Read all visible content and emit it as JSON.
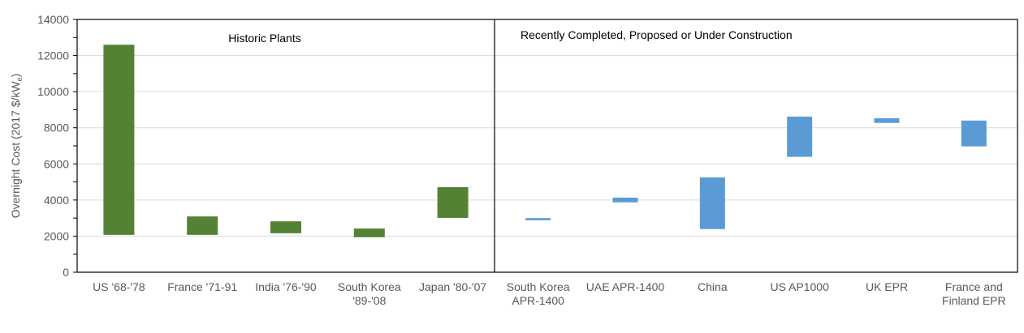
{
  "chart_data": {
    "type": "bar",
    "subtype": "floating-range",
    "ylabel": "Overnight Cost (2017 $/kWe)",
    "ylabel_main": "Overnight Cost (2017 $/kW",
    "ylabel_sub": "e",
    "ylabel_end": ")",
    "ylim": [
      0,
      14000
    ],
    "yticks": [
      0,
      2000,
      4000,
      6000,
      8000,
      10000,
      12000,
      14000
    ],
    "grid": true,
    "panels": [
      {
        "title": "Historic Plants",
        "color": "#548235",
        "categories": [
          [
            "US '68-'78"
          ],
          [
            "France '71-91"
          ],
          [
            "India '76-'90"
          ],
          [
            "South Korea",
            "'89-'08"
          ],
          [
            "Japan '80-'07"
          ]
        ],
        "ranges": [
          [
            2070,
            12600
          ],
          [
            2070,
            3090
          ],
          [
            2160,
            2820
          ],
          [
            1940,
            2420
          ],
          [
            3010,
            4710
          ]
        ]
      },
      {
        "title": "Recently Completed, Proposed or Under Construction",
        "color": "#5b9bd5",
        "categories": [
          [
            "South Korea",
            "APR-1400"
          ],
          [
            "UAE APR-1400"
          ],
          [
            "China"
          ],
          [
            "US AP1000"
          ],
          [
            "UK EPR"
          ],
          [
            "France and",
            "Finland EPR"
          ]
        ],
        "ranges": [
          [
            2880,
            3000
          ],
          [
            3870,
            4130
          ],
          [
            2390,
            5250
          ],
          [
            6390,
            8620
          ],
          [
            8270,
            8530
          ],
          [
            6970,
            8400
          ]
        ]
      }
    ]
  }
}
